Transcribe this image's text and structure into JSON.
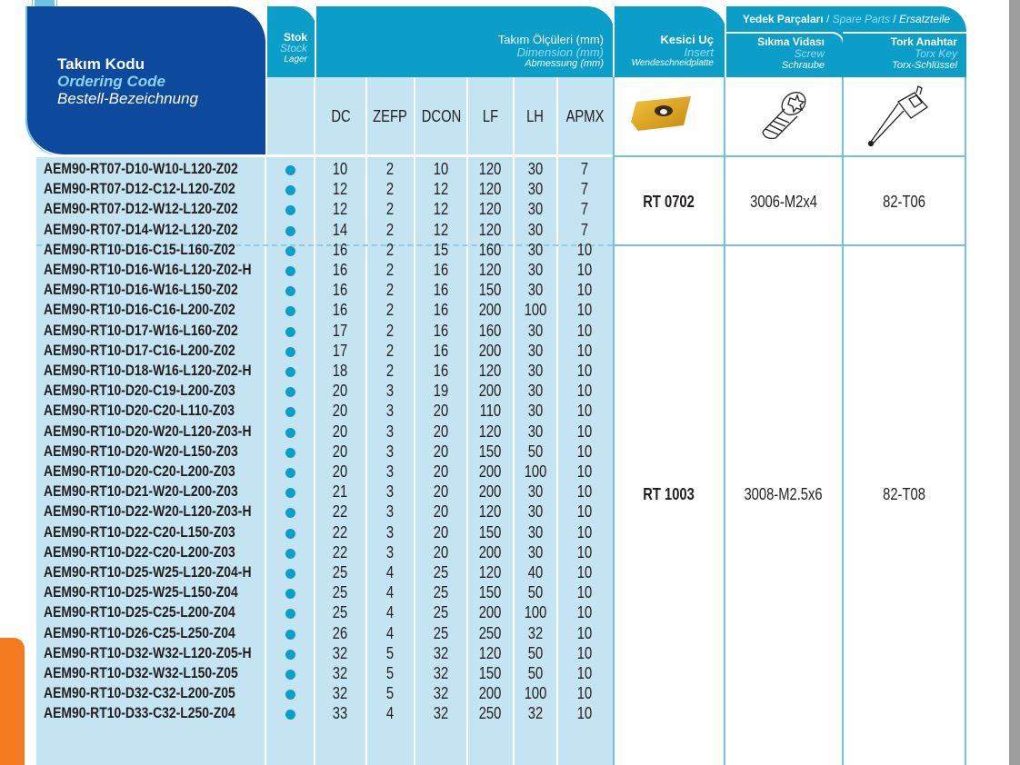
{
  "header": {
    "code": {
      "tr": "Takım Kodu",
      "en": "Ordering Code",
      "de": "Bestell-Bezeichnung"
    },
    "stock": {
      "tr": "Stok",
      "en": "Stock",
      "de": "Lager"
    },
    "dimensions": {
      "tr": "Takım Ölçüleri (mm)",
      "en": "Dimension (mm)",
      "de": "Abmessung (mm)"
    },
    "insert": {
      "tr": "Kesici Uç",
      "en": "Insert",
      "de": "Wendeschneidplatte"
    },
    "spare_parts": {
      "tr": "Yedek Parçaları",
      "en": "Spare Parts",
      "de": "Ersatzteile",
      "sep": " / "
    },
    "screw": {
      "tr": "Sıkma Vidası",
      "en": "Screw",
      "de": "Schraube"
    },
    "key": {
      "tr": "Tork Anahtar",
      "en": "Torx Key",
      "de": "Torx-Schlüssel"
    },
    "columns": [
      "DC",
      "ZEFP",
      "DCON",
      "LF",
      "LH",
      "APMX"
    ]
  },
  "icons": {
    "insert": "insert-image-icon",
    "screw": "screw-icon",
    "key": "torx-key-icon",
    "stock": "stock-dot-icon"
  },
  "colors": {
    "header": "#0a9ec9",
    "code_header": "#0d4a9e",
    "row_bg": "#c5e4f2",
    "stock_dot": "#0a9ec9",
    "side_tab": "#f47b20"
  },
  "groups": [
    {
      "insert": "RT 0702",
      "screw": "3006-M2x4",
      "key": "82-T06"
    },
    {
      "insert": "RT 1003",
      "screw": "3008-M2.5x6",
      "key": "82-T08"
    }
  ],
  "rows": [
    {
      "code": "AEM90-RT07-D10-W10-L120-Z02",
      "stock": true,
      "v": [
        "10",
        "2",
        "10",
        "120",
        "30",
        "7"
      ]
    },
    {
      "code": "AEM90-RT07-D12-C12-L120-Z02",
      "stock": true,
      "v": [
        "12",
        "2",
        "12",
        "120",
        "30",
        "7"
      ]
    },
    {
      "code": "AEM90-RT07-D12-W12-L120-Z02",
      "stock": true,
      "v": [
        "12",
        "2",
        "12",
        "120",
        "30",
        "7"
      ]
    },
    {
      "code": "AEM90-RT07-D14-W12-L120-Z02",
      "stock": true,
      "v": [
        "14",
        "2",
        "12",
        "120",
        "30",
        "7"
      ]
    },
    {
      "code": "AEM90-RT10-D16-C15-L160-Z02",
      "stock": true,
      "v": [
        "16",
        "2",
        "15",
        "160",
        "30",
        "10"
      ]
    },
    {
      "code": "AEM90-RT10-D16-W16-L120-Z02-H",
      "stock": true,
      "v": [
        "16",
        "2",
        "16",
        "120",
        "30",
        "10"
      ]
    },
    {
      "code": "AEM90-RT10-D16-W16-L150-Z02",
      "stock": true,
      "v": [
        "16",
        "2",
        "16",
        "150",
        "30",
        "10"
      ]
    },
    {
      "code": "AEM90-RT10-D16-C16-L200-Z02",
      "stock": true,
      "v": [
        "16",
        "2",
        "16",
        "200",
        "100",
        "10"
      ]
    },
    {
      "code": "AEM90-RT10-D17-W16-L160-Z02",
      "stock": true,
      "v": [
        "17",
        "2",
        "16",
        "160",
        "30",
        "10"
      ]
    },
    {
      "code": "AEM90-RT10-D17-C16-L200-Z02",
      "stock": true,
      "v": [
        "17",
        "2",
        "16",
        "200",
        "30",
        "10"
      ]
    },
    {
      "code": "AEM90-RT10-D18-W16-L120-Z02-H",
      "stock": true,
      "v": [
        "18",
        "2",
        "16",
        "120",
        "30",
        "10"
      ]
    },
    {
      "code": "AEM90-RT10-D20-C19-L200-Z03",
      "stock": true,
      "v": [
        "20",
        "3",
        "19",
        "200",
        "30",
        "10"
      ]
    },
    {
      "code": "AEM90-RT10-D20-C20-L110-Z03",
      "stock": true,
      "v": [
        "20",
        "3",
        "20",
        "110",
        "30",
        "10"
      ]
    },
    {
      "code": "AEM90-RT10-D20-W20-L120-Z03-H",
      "stock": true,
      "v": [
        "20",
        "3",
        "20",
        "120",
        "30",
        "10"
      ]
    },
    {
      "code": "AEM90-RT10-D20-W20-L150-Z03",
      "stock": true,
      "v": [
        "20",
        "3",
        "20",
        "150",
        "50",
        "10"
      ]
    },
    {
      "code": "AEM90-RT10-D20-C20-L200-Z03",
      "stock": true,
      "v": [
        "20",
        "3",
        "20",
        "200",
        "100",
        "10"
      ]
    },
    {
      "code": "AEM90-RT10-D21-W20-L200-Z03",
      "stock": true,
      "v": [
        "21",
        "3",
        "20",
        "200",
        "30",
        "10"
      ]
    },
    {
      "code": "AEM90-RT10-D22-W20-L120-Z03-H",
      "stock": true,
      "v": [
        "22",
        "3",
        "20",
        "120",
        "30",
        "10"
      ]
    },
    {
      "code": "AEM90-RT10-D22-C20-L150-Z03",
      "stock": true,
      "v": [
        "22",
        "3",
        "20",
        "150",
        "30",
        "10"
      ]
    },
    {
      "code": "AEM90-RT10-D22-C20-L200-Z03",
      "stock": true,
      "v": [
        "22",
        "3",
        "20",
        "200",
        "30",
        "10"
      ]
    },
    {
      "code": "AEM90-RT10-D25-W25-L120-Z04-H",
      "stock": true,
      "v": [
        "25",
        "4",
        "25",
        "120",
        "40",
        "10"
      ]
    },
    {
      "code": "AEM90-RT10-D25-W25-L150-Z04",
      "stock": true,
      "v": [
        "25",
        "4",
        "25",
        "150",
        "50",
        "10"
      ]
    },
    {
      "code": "AEM90-RT10-D25-C25-L200-Z04",
      "stock": true,
      "v": [
        "25",
        "4",
        "25",
        "200",
        "100",
        "10"
      ]
    },
    {
      "code": "AEM90-RT10-D26-C25-L250-Z04",
      "stock": true,
      "v": [
        "26",
        "4",
        "25",
        "250",
        "32",
        "10"
      ]
    },
    {
      "code": "AEM90-RT10-D32-W32-L120-Z05-H",
      "stock": true,
      "v": [
        "32",
        "5",
        "32",
        "120",
        "50",
        "10"
      ]
    },
    {
      "code": "AEM90-RT10-D32-W32-L150-Z05",
      "stock": true,
      "v": [
        "32",
        "5",
        "32",
        "150",
        "50",
        "10"
      ]
    },
    {
      "code": "AEM90-RT10-D32-C32-L200-Z05",
      "stock": true,
      "v": [
        "32",
        "5",
        "32",
        "200",
        "100",
        "10"
      ]
    },
    {
      "code": "AEM90-RT10-D33-C32-L250-Z04",
      "stock": true,
      "v": [
        "33",
        "4",
        "32",
        "250",
        "32",
        "10"
      ]
    }
  ]
}
